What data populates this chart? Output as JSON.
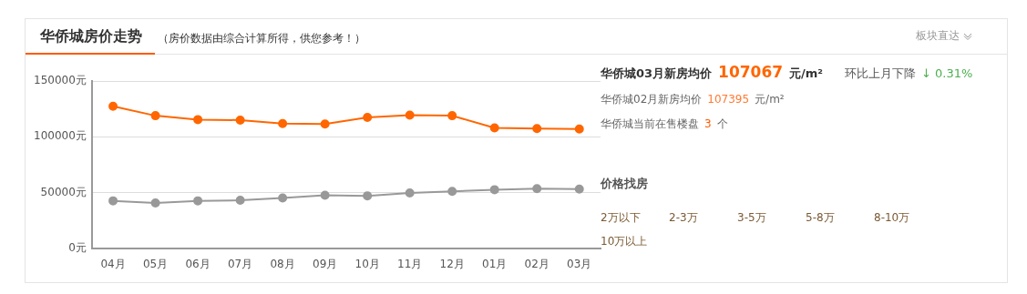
{
  "chart_data": [
    {
      "type": "line",
      "title": "华侨城房价走势",
      "subtitle": "（房价数据由综合计算所得，供您参考！）",
      "categories": [
        "04月",
        "05月",
        "06月",
        "07月",
        "08月",
        "09月",
        "10月",
        "11月",
        "12月",
        "01月",
        "02月",
        "03月"
      ],
      "series": [
        {
          "color": "#ff6600",
          "values": [
            127500,
            119000,
            115500,
            115000,
            112000,
            111500,
            117500,
            119500,
            119000,
            108000,
            107395,
            107067
          ]
        },
        {
          "color": "#999999",
          "values": [
            42500,
            40500,
            42500,
            43000,
            45000,
            47500,
            47000,
            49500,
            51000,
            52500,
            53500,
            53000
          ]
        }
      ],
      "ylim": [
        0,
        150000
      ],
      "yticks": [
        {
          "value": 0,
          "label": "0元"
        },
        {
          "value": 50000,
          "label": "50000元"
        },
        {
          "value": 100000,
          "label": "100000元"
        },
        {
          "value": 150000,
          "label": "150000元"
        }
      ],
      "grid": "y",
      "marker": "circle",
      "line_style": "solid"
    },
    {
      "type": "other",
      "annotations": [
        "华侨城03月新房均价",
        "107067",
        "元/m²",
        "环比上月下降",
        "↓ 0.31%",
        "华侨城02月新房均价",
        "107395",
        "元/m²",
        "华侨城当前在售楼盘",
        "3",
        "个",
        "价格找房",
        "2万以下",
        "2-3万",
        "3-5万",
        "5-8万",
        "8-10万",
        "10万以上",
        "板块直达"
      ]
    }
  ]
}
